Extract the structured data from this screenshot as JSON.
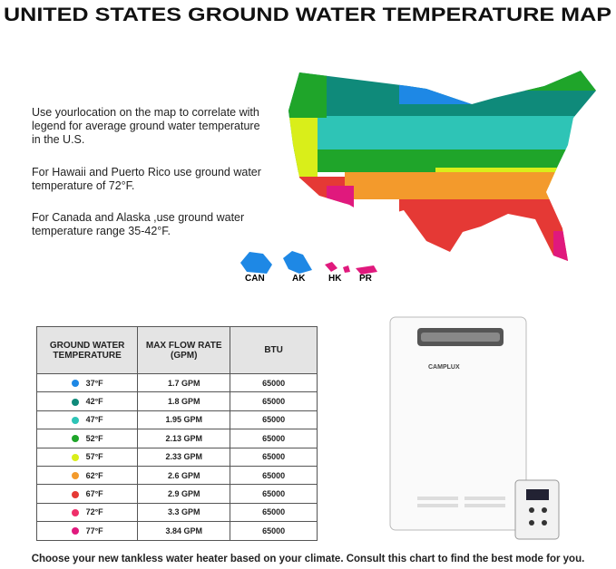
{
  "header": {
    "title": "UNITED STATES GROUND WATER TEMPERATURE MAP"
  },
  "intro": [
    "Use yourlocation on the map to correlate with legend for average ground water temperature in the U.S.",
    "For Hawaii and Puerto Rico use ground water temperature of 72°F.",
    "For Canada and Alaska ,use ground water temperature range 35-42°F."
  ],
  "map_labels": [
    "CAN",
    "AK",
    "HK",
    "PR"
  ],
  "table": {
    "columns": [
      "GROUND WATER TEMPERATURE",
      "MAX FLOW RATE (GPM)",
      "BTU"
    ],
    "rows": [
      [
        "37°F",
        "1.7 GPM",
        "65000"
      ],
      [
        "42°F",
        "1.8 GPM",
        "65000"
      ],
      [
        "47°F",
        "1.95 GPM",
        "65000"
      ],
      [
        "52°F",
        "2.13 GPM",
        "65000"
      ],
      [
        "57°F",
        "2.33 GPM",
        "65000"
      ],
      [
        "62°F",
        "2.6 GPM",
        "65000"
      ],
      [
        "67°F",
        "2.9 GPM",
        "65000"
      ],
      [
        "72°F",
        "3.3 GPM",
        "65000"
      ],
      [
        "77°F",
        "3.84 GPM",
        "65000"
      ]
    ],
    "row_colors": [
      "#1e88e5",
      "#0f8a7a",
      "#2ec4b6",
      "#1fa52a",
      "#d9ee1a",
      "#f39a2c",
      "#e53935",
      "#ef2f6a",
      "#e0197d"
    ]
  },
  "product": {
    "brand": "CAMPLUX"
  },
  "footer": "Choose your new tankless water heater based on your climate. Consult this chart to find the best mode for you."
}
